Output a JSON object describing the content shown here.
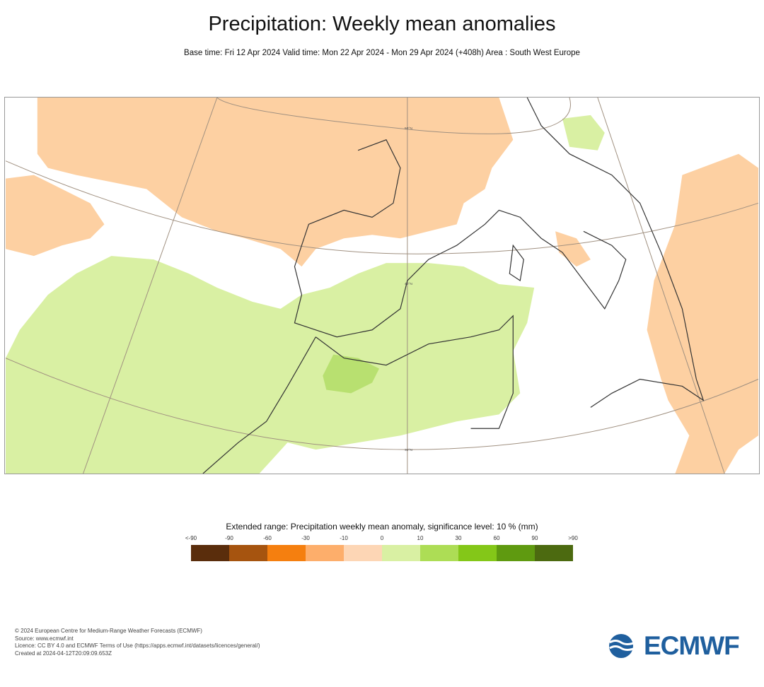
{
  "header": {
    "title": "Precipitation: Weekly mean anomalies",
    "subtitle": "Base time: Fri 12 Apr 2024 Valid time: Mon 22 Apr 2024 - Mon 29 Apr 2024 (+408h) Area : South West Europe"
  },
  "map": {
    "region": "South West Europe",
    "grid_labels": [
      "50°N",
      "40°N",
      "30°N"
    ],
    "colors": {
      "positive": "#d9f0a3",
      "negative": "#fdd0a2",
      "land_border": "#333333",
      "grid": "#a09080"
    }
  },
  "legend": {
    "title": "Extended range: Precipitation weekly mean anomaly, significance level: 10 % (mm)",
    "ticks": [
      "<-90",
      "-90",
      "-60",
      "-30",
      "-10",
      "0",
      "10",
      "30",
      "60",
      "90",
      ">90"
    ],
    "colors": [
      "#5a2d0c",
      "#a6540f",
      "#f57f0f",
      "#fdae6b",
      "#fdd6b5",
      "#d9f0a3",
      "#addd55",
      "#84c718",
      "#5f9a10",
      "#4c6a10"
    ]
  },
  "footer": {
    "lines": [
      "© 2024 European Centre for Medium-Range Weather Forecasts (ECMWF)",
      "Source: www.ecmwf.int",
      "Licence: CC BY 4.0 and ECMWF Terms of Use (https://apps.ecmwf.int/datasets/licences/general/)",
      "Created at 2024-04-12T20:09:09.653Z"
    ]
  },
  "logo": {
    "text": "ECMWF"
  }
}
